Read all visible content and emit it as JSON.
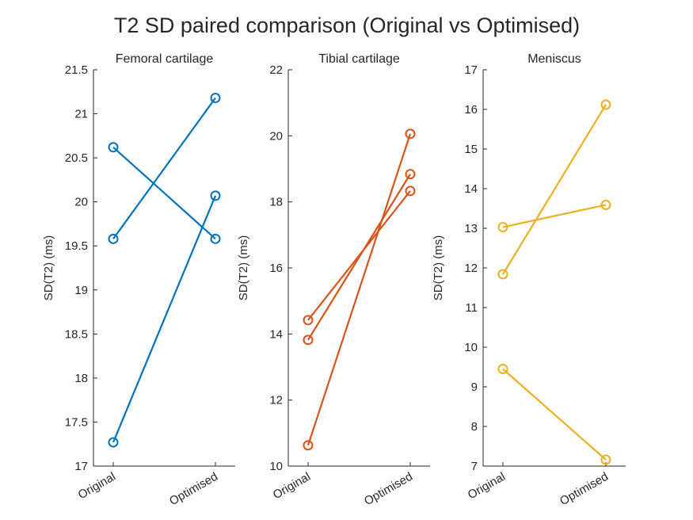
{
  "figure_title": "T2 SD paired comparison (Original vs Optimised)",
  "chart_data": [
    {
      "type": "line",
      "title": "Femoral cartilage",
      "ylabel": "SD(T2) (ms)",
      "xlabel": "",
      "categories": [
        "Original",
        "Optimised"
      ],
      "ylim": [
        17,
        21.5
      ],
      "yticks": [
        "17",
        "17.5",
        "18",
        "18.5",
        "19",
        "19.5",
        "20",
        "20.5",
        "21",
        "21.5"
      ],
      "ytick_values": [
        17,
        17.5,
        18,
        18.5,
        19,
        19.5,
        20,
        20.5,
        21,
        21.5
      ],
      "color": "#0072BD",
      "marker": "circle",
      "grid": false,
      "pairs": [
        {
          "values": [
            20.62,
            19.58
          ]
        },
        {
          "values": [
            19.58,
            21.18
          ]
        },
        {
          "values": [
            17.27,
            20.07
          ]
        }
      ]
    },
    {
      "type": "line",
      "title": "Tibial cartilage",
      "ylabel": "SD(T2) (ms)",
      "xlabel": "",
      "categories": [
        "Original",
        "Optimised"
      ],
      "ylim": [
        10,
        22
      ],
      "yticks": [
        "10",
        "12",
        "14",
        "16",
        "18",
        "20",
        "22"
      ],
      "ytick_values": [
        10,
        12,
        14,
        16,
        18,
        20,
        22
      ],
      "color": "#D95319",
      "marker": "circle",
      "grid": false,
      "pairs": [
        {
          "values": [
            14.42,
            18.33
          ]
        },
        {
          "values": [
            13.82,
            18.84
          ]
        },
        {
          "values": [
            10.63,
            20.06
          ]
        }
      ]
    },
    {
      "type": "line",
      "title": "Meniscus",
      "ylabel": "SD(T2) (ms)",
      "xlabel": "",
      "categories": [
        "Original",
        "Optimised"
      ],
      "ylim": [
        7,
        17
      ],
      "yticks": [
        "7",
        "8",
        "9",
        "10",
        "11",
        "12",
        "13",
        "14",
        "15",
        "16",
        "17"
      ],
      "ytick_values": [
        7,
        8,
        9,
        10,
        11,
        12,
        13,
        14,
        15,
        16,
        17
      ],
      "color": "#EDB120",
      "marker": "circle",
      "grid": false,
      "pairs": [
        {
          "values": [
            13.03,
            13.59
          ]
        },
        {
          "values": [
            11.84,
            16.12
          ]
        },
        {
          "values": [
            9.45,
            7.16
          ]
        }
      ]
    }
  ]
}
